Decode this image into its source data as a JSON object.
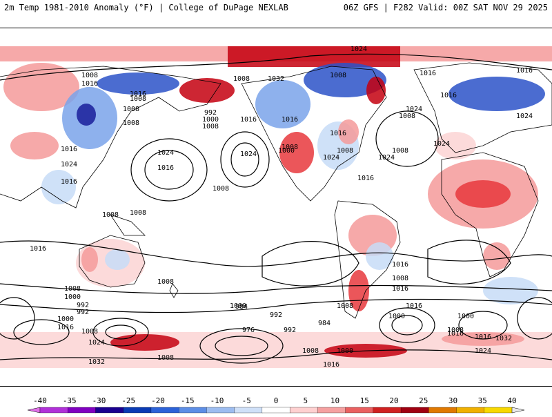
{
  "header": {
    "title": "2m Temp 1981-2010 Anomaly (°F) | College of DuPage NEXLAB",
    "run": "06Z GFS | F282 Valid: 00Z SAT NOV 29 2025"
  },
  "colors": {
    "warm_light": "#fbd4d4",
    "warm_mid": "#f59a9a",
    "warm_strong": "#e8383d",
    "warm_deep": "#c4000f",
    "cool_light": "#c7dcf7",
    "cool_mid": "#7aa3ea",
    "cool_strong": "#2c52c8",
    "cool_deep": "#1a1f9a",
    "land_line": "#000000"
  },
  "colorbar": {
    "labels": [
      "-40",
      "-35",
      "-30",
      "-25",
      "-20",
      "-15",
      "-10",
      "-5",
      "0",
      "5",
      "10",
      "15",
      "20",
      "25",
      "30",
      "35",
      "40"
    ],
    "colors": [
      "#e070e8",
      "#b030d8",
      "#8000c0",
      "#1a0090",
      "#0a3ab4",
      "#2c62d8",
      "#5c8ee6",
      "#9cbcf0",
      "#cfe0f8",
      "#ffffff",
      "#ffd0d0",
      "#f5a0a0",
      "#ea6060",
      "#d02020",
      "#a00010",
      "#e07800",
      "#f0b000",
      "#f8d800",
      "#e8e8e8"
    ]
  },
  "isobars": [
    "1024",
    "1016",
    "1008",
    "1008",
    "1016",
    "1008",
    "1016",
    "1024",
    "1032",
    "1016",
    "1008",
    "1008",
    "1016",
    "1024",
    "1008",
    "1016",
    "992",
    "1000",
    "1008",
    "1024",
    "1024",
    "1016",
    "1016",
    "1024",
    "1024",
    "1016",
    "1008",
    "1000",
    "1008",
    "1016",
    "1024",
    "1008",
    "1008",
    "1016",
    "1008",
    "1008",
    "1008",
    "1016",
    "1008",
    "1016",
    "1008",
    "1016",
    "1016",
    "1008",
    "1000",
    "992",
    "992",
    "1000",
    "1016",
    "1008",
    "1024",
    "1032",
    "1008",
    "1024",
    "1016",
    "1008",
    "1000",
    "984",
    "992",
    "976",
    "992",
    "984",
    "1008",
    "1016",
    "1000",
    "1016",
    "1000",
    "1008",
    "1016",
    "1024",
    "1032",
    "1000"
  ]
}
